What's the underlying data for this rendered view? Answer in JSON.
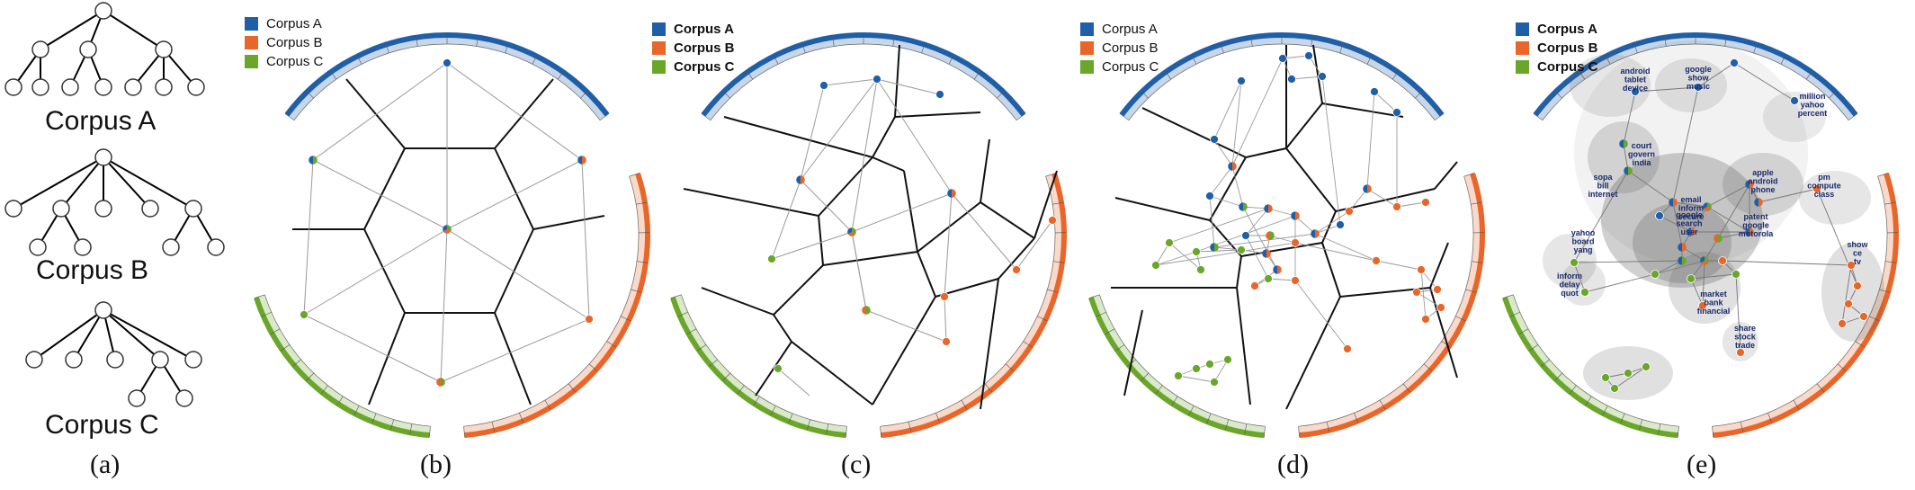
{
  "colors": {
    "corpus_a": "#1f5fa8",
    "corpus_b": "#e8662a",
    "corpus_c": "#6aa62a",
    "edge": "#9a9a9a",
    "voronoi": "#111111"
  },
  "legend": [
    "Corpus A",
    "Corpus B",
    "Corpus C"
  ],
  "trees": [
    {
      "label": "Corpus A"
    },
    {
      "label": "Corpus B"
    },
    {
      "label": "Corpus C"
    }
  ],
  "panels": [
    {
      "label": "(a)"
    },
    {
      "label": "(b)"
    },
    {
      "label": "(c)"
    },
    {
      "label": "(d)"
    },
    {
      "label": "(e)"
    }
  ],
  "topic_labels": [
    "android\ntablet\ndevice",
    "google\nshow\nmusic",
    "million\nyahoo\npercent",
    "court\ngovern\nindia",
    "sopa\nbill\ninternet",
    "apple\nandroid\nphone",
    "pm\ncompute\nclass",
    "email\ninform\nsecure",
    "patent\ngoogle\nmotorola",
    "google\nsearch\nuser",
    "yahoo\nboard\nyang",
    "show\nce\ntv",
    "inform\ndelay\nquot",
    "market\nbank\nfinancial",
    "share\nstock\ntrade"
  ]
}
